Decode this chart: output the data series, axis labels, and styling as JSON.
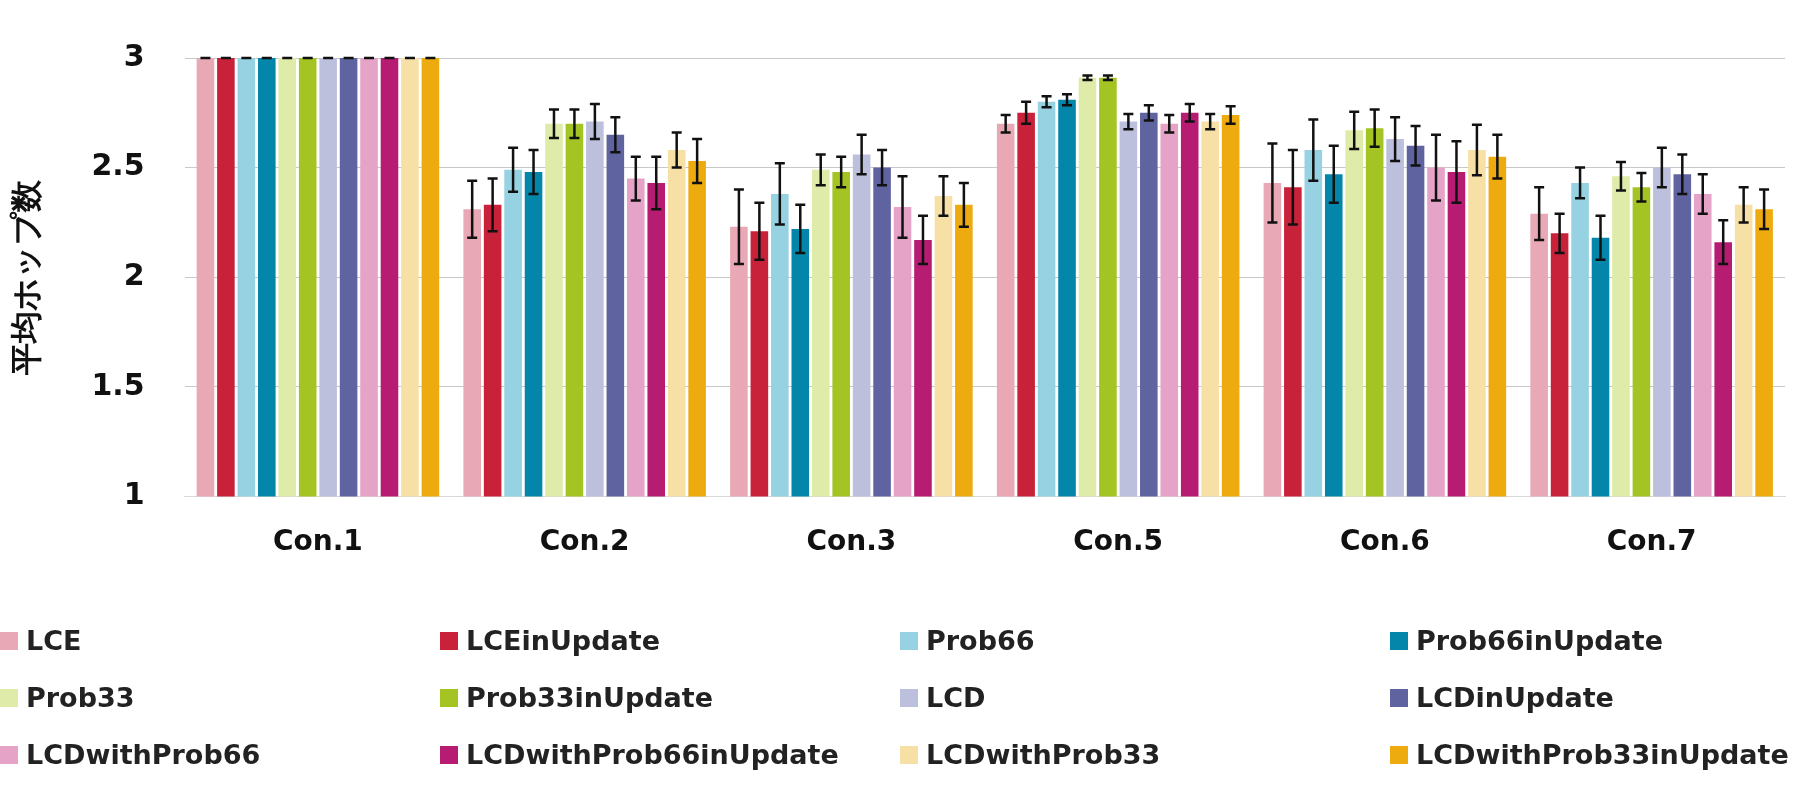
{
  "chart_data": {
    "type": "bar",
    "ylabel": "平均ホップ数",
    "categories": [
      "Con.1",
      "Con.2",
      "Con.3",
      "Con.5",
      "Con.6",
      "Con.7"
    ],
    "ylim": [
      1,
      3
    ],
    "yticks": [
      1,
      1.5,
      2,
      2.5,
      3
    ],
    "grid": "y",
    "legend": "bottom",
    "series": [
      {
        "name": "LCE",
        "color": "#e8a8b5",
        "values": [
          3,
          2.31,
          2.23,
          2.7,
          2.43,
          2.29
        ],
        "errors": [
          0,
          0.13,
          0.17,
          0.04,
          0.18,
          0.12
        ]
      },
      {
        "name": "LCEinUpdate",
        "color": "#c8223a",
        "values": [
          3,
          2.33,
          2.21,
          2.75,
          2.41,
          2.2
        ],
        "errors": [
          0,
          0.12,
          0.13,
          0.05,
          0.17,
          0.09
        ]
      },
      {
        "name": "Prob66",
        "color": "#96d2e2",
        "values": [
          3,
          2.49,
          2.38,
          2.8,
          2.58,
          2.43
        ],
        "errors": [
          0,
          0.1,
          0.14,
          0.025,
          0.14,
          0.07
        ]
      },
      {
        "name": "Prob66inUpdate",
        "color": "#0386aa",
        "values": [
          3,
          2.48,
          2.22,
          2.81,
          2.47,
          2.18
        ],
        "errors": [
          0,
          0.1,
          0.11,
          0.025,
          0.13,
          0.1
        ]
      },
      {
        "name": "Prob33",
        "color": "#dfeba8",
        "values": [
          3,
          2.7,
          2.49,
          2.91,
          2.67,
          2.46
        ],
        "errors": [
          0,
          0.065,
          0.07,
          0.01,
          0.085,
          0.065
        ]
      },
      {
        "name": "Prob33inUpdate",
        "color": "#a4c424",
        "values": [
          3,
          2.7,
          2.48,
          2.91,
          2.68,
          2.41
        ],
        "errors": [
          0,
          0.065,
          0.07,
          0.01,
          0.085,
          0.065
        ]
      },
      {
        "name": "LCD",
        "color": "#bcc0dd",
        "values": [
          3,
          2.71,
          2.56,
          2.71,
          2.63,
          2.5
        ],
        "errors": [
          0,
          0.08,
          0.09,
          0.035,
          0.1,
          0.09
        ]
      },
      {
        "name": "LCDinUpdate",
        "color": "#5f64a0",
        "values": [
          3,
          2.65,
          2.5,
          2.75,
          2.6,
          2.47
        ],
        "errors": [
          0,
          0.08,
          0.08,
          0.035,
          0.09,
          0.09
        ]
      },
      {
        "name": "LCDwithProb66",
        "color": "#e6a3c8",
        "values": [
          3,
          2.45,
          2.32,
          2.7,
          2.5,
          2.38
        ],
        "errors": [
          0,
          0.1,
          0.14,
          0.04,
          0.15,
          0.09
        ]
      },
      {
        "name": "LCDwithProb66inUpdate",
        "color": "#b71c73",
        "values": [
          3,
          2.43,
          2.17,
          2.75,
          2.48,
          2.16
        ],
        "errors": [
          0,
          0.12,
          0.11,
          0.04,
          0.14,
          0.1
        ]
      },
      {
        "name": "LCDwithProb33",
        "color": "#f6e0a5",
        "values": [
          3,
          2.58,
          2.37,
          2.71,
          2.58,
          2.33
        ],
        "errors": [
          0,
          0.08,
          0.09,
          0.035,
          0.115,
          0.08
        ]
      },
      {
        "name": "LCDwithProb33inUpdate",
        "color": "#eeab0f",
        "values": [
          3,
          2.53,
          2.33,
          2.74,
          2.55,
          2.31
        ],
        "errors": [
          0,
          0.1,
          0.1,
          0.04,
          0.1,
          0.09
        ]
      }
    ]
  }
}
